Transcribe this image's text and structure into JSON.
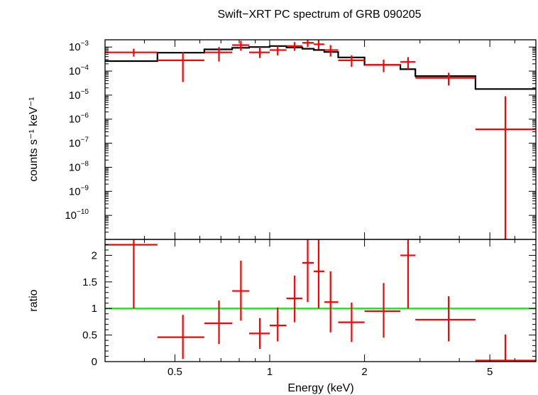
{
  "chart_data": [
    {
      "type": "scatter",
      "title": "Swift−XRT PC spectrum of GRB 090205",
      "xlabel": "Energy (keV)",
      "ylabel": "counts s⁻¹ keV⁻¹",
      "xscale": "log",
      "yscale": "log",
      "xlim": [
        0.3,
        7.0
      ],
      "ylim": [
        1e-11,
        0.002
      ],
      "x_tick_labels": [
        "0.5",
        "1",
        "2",
        "5"
      ],
      "y_tick_labels": [
        {
          "base": "10",
          "exp": "−3",
          "value": 0.001
        },
        {
          "base": "10",
          "exp": "−4",
          "value": 0.0001
        },
        {
          "base": "10",
          "exp": "−5",
          "value": 1e-05
        },
        {
          "base": "10",
          "exp": "−6",
          "value": 1e-06
        },
        {
          "base": "10",
          "exp": "−7",
          "value": 1e-07
        },
        {
          "base": "10",
          "exp": "−8",
          "value": 1e-08
        },
        {
          "base": "10",
          "exp": "−9",
          "value": 1e-09
        },
        {
          "base": "10",
          "exp": "−10",
          "value": 1e-10
        }
      ],
      "grid": false,
      "colors": {
        "data": "#ff0000",
        "model": "#000000"
      },
      "series": [
        {
          "kind": "data",
          "points": [
            {
              "x": 0.37,
              "xlo": 0.3,
              "xhi": 0.44,
              "y": 0.0006,
              "ylo": 0.0004,
              "yhi": 0.00085
            },
            {
              "x": 0.53,
              "xlo": 0.44,
              "xhi": 0.62,
              "y": 0.00028,
              "ylo": 3.5e-05,
              "yhi": 0.0006
            },
            {
              "x": 0.69,
              "xlo": 0.62,
              "xhi": 0.76,
              "y": 0.0006,
              "ylo": 0.00025,
              "yhi": 0.001
            },
            {
              "x": 0.81,
              "xlo": 0.76,
              "xhi": 0.86,
              "y": 0.0012,
              "ylo": 0.0007,
              "yhi": 0.0018
            },
            {
              "x": 0.93,
              "xlo": 0.86,
              "xhi": 1.0,
              "y": 0.0006,
              "ylo": 0.00035,
              "yhi": 0.001
            },
            {
              "x": 1.06,
              "xlo": 1.0,
              "xhi": 1.13,
              "y": 0.00075,
              "ylo": 0.00045,
              "yhi": 0.0011
            },
            {
              "x": 1.2,
              "xlo": 1.13,
              "xhi": 1.27,
              "y": 0.0011,
              "ylo": 0.0007,
              "yhi": 0.0016
            },
            {
              "x": 1.32,
              "xlo": 1.27,
              "xhi": 1.38,
              "y": 0.0015,
              "ylo": 0.001,
              "yhi": 0.002
            },
            {
              "x": 1.43,
              "xlo": 1.38,
              "xhi": 1.49,
              "y": 0.0013,
              "ylo": 0.0008,
              "yhi": 0.0019
            },
            {
              "x": 1.56,
              "xlo": 1.49,
              "xhi": 1.65,
              "y": 0.00075,
              "ylo": 0.0004,
              "yhi": 0.0012
            },
            {
              "x": 1.82,
              "xlo": 1.65,
              "xhi": 2.0,
              "y": 0.00028,
              "ylo": 0.00015,
              "yhi": 0.00045
            },
            {
              "x": 2.3,
              "xlo": 2.0,
              "xhi": 2.6,
              "y": 0.00018,
              "ylo": 9e-05,
              "yhi": 0.0003
            },
            {
              "x": 2.75,
              "xlo": 2.6,
              "xhi": 2.9,
              "y": 0.00024,
              "ylo": 0.00012,
              "yhi": 0.00038
            },
            {
              "x": 3.7,
              "xlo": 2.9,
              "xhi": 4.5,
              "y": 5.2e-05,
              "ylo": 2.5e-05,
              "yhi": 8.5e-05
            },
            {
              "x": 5.6,
              "xlo": 4.5,
              "xhi": 7.0,
              "y": 3.8e-07,
              "ylo": 1e-11,
              "yhi": 9e-06
            }
          ]
        },
        {
          "kind": "model",
          "steps": [
            {
              "xlo": 0.3,
              "xhi": 0.44,
              "y": 0.00026
            },
            {
              "xlo": 0.44,
              "xhi": 0.62,
              "y": 0.00058
            },
            {
              "xlo": 0.62,
              "xhi": 0.76,
              "y": 0.0008
            },
            {
              "xlo": 0.76,
              "xhi": 0.86,
              "y": 0.00093
            },
            {
              "xlo": 0.86,
              "xhi": 1.0,
              "y": 0.001
            },
            {
              "xlo": 1.0,
              "xhi": 1.13,
              "y": 0.0011
            },
            {
              "xlo": 1.13,
              "xhi": 1.27,
              "y": 0.00095
            },
            {
              "xlo": 1.27,
              "xhi": 1.38,
              "y": 0.00085
            },
            {
              "xlo": 1.38,
              "xhi": 1.49,
              "y": 0.00075
            },
            {
              "xlo": 1.49,
              "xhi": 1.65,
              "y": 0.00062
            },
            {
              "xlo": 1.65,
              "xhi": 2.0,
              "y": 0.00037
            },
            {
              "xlo": 2.0,
              "xhi": 2.6,
              "y": 0.00018
            },
            {
              "xlo": 2.6,
              "xhi": 2.9,
              "y": 0.00012
            },
            {
              "xlo": 2.9,
              "xhi": 4.5,
              "y": 6.2e-05
            },
            {
              "xlo": 4.5,
              "xhi": 7.0,
              "y": 1.8e-05
            }
          ]
        }
      ]
    },
    {
      "type": "scatter",
      "xlabel": "Energy (keV)",
      "ylabel": "ratio",
      "xscale": "log",
      "xlim": [
        0.3,
        7.0
      ],
      "ylim": [
        0,
        2.3
      ],
      "x_tick_labels": [
        "0.5",
        "1",
        "2",
        "5"
      ],
      "y_tick_labels": [
        "0",
        "0.5",
        "1",
        "1.5",
        "2"
      ],
      "grid": false,
      "colors": {
        "data": "#ff0000",
        "reference": "#00ff00"
      },
      "reference_line": 1,
      "series": [
        {
          "kind": "data",
          "points": [
            {
              "x": 0.37,
              "xlo": 0.3,
              "xhi": 0.44,
              "y": 2.2,
              "ylo": 1.0,
              "yhi": 2.3
            },
            {
              "x": 0.53,
              "xlo": 0.44,
              "xhi": 0.62,
              "y": 0.46,
              "ylo": 0.05,
              "yhi": 0.88
            },
            {
              "x": 0.69,
              "xlo": 0.62,
              "xhi": 0.76,
              "y": 0.72,
              "ylo": 0.33,
              "yhi": 1.15
            },
            {
              "x": 0.81,
              "xlo": 0.76,
              "xhi": 0.86,
              "y": 1.33,
              "ylo": 0.77,
              "yhi": 1.9
            },
            {
              "x": 0.93,
              "xlo": 0.86,
              "xhi": 1.0,
              "y": 0.53,
              "ylo": 0.24,
              "yhi": 0.82
            },
            {
              "x": 1.06,
              "xlo": 1.0,
              "xhi": 1.13,
              "y": 0.68,
              "ylo": 0.38,
              "yhi": 1.02
            },
            {
              "x": 1.2,
              "xlo": 1.13,
              "xhi": 1.27,
              "y": 1.19,
              "ylo": 0.74,
              "yhi": 1.62
            },
            {
              "x": 1.32,
              "xlo": 1.27,
              "xhi": 1.38,
              "y": 1.86,
              "ylo": 1.12,
              "yhi": 2.3
            },
            {
              "x": 1.43,
              "xlo": 1.38,
              "xhi": 1.49,
              "y": 1.7,
              "ylo": 1.0,
              "yhi": 2.3
            },
            {
              "x": 1.56,
              "xlo": 1.49,
              "xhi": 1.65,
              "y": 1.12,
              "ylo": 0.55,
              "yhi": 1.7
            },
            {
              "x": 1.82,
              "xlo": 1.65,
              "xhi": 2.0,
              "y": 0.74,
              "ylo": 0.37,
              "yhi": 1.11
            },
            {
              "x": 2.3,
              "xlo": 2.0,
              "xhi": 2.6,
              "y": 0.95,
              "ylo": 0.45,
              "yhi": 1.48
            },
            {
              "x": 2.75,
              "xlo": 2.6,
              "xhi": 2.9,
              "y": 2.0,
              "ylo": 1.0,
              "yhi": 2.3
            },
            {
              "x": 3.7,
              "xlo": 2.9,
              "xhi": 4.5,
              "y": 0.79,
              "ylo": 0.38,
              "yhi": 1.23
            },
            {
              "x": 5.6,
              "xlo": 4.5,
              "xhi": 7.0,
              "y": 0.02,
              "ylo": 0.0,
              "yhi": 0.51
            }
          ]
        }
      ]
    }
  ]
}
